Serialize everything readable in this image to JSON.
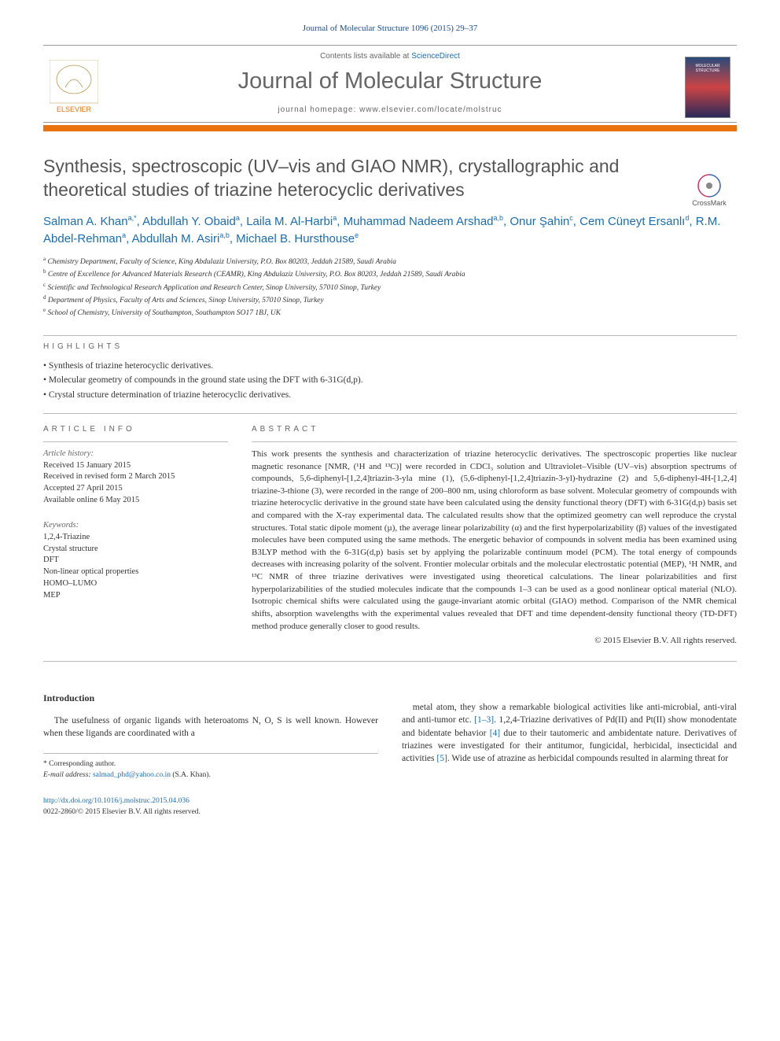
{
  "header": {
    "citation": "Journal of Molecular Structure 1096 (2015) 29–37",
    "contents_prefix": "Contents lists available at ",
    "contents_link": "ScienceDirect",
    "journal_title": "Journal of Molecular Structure",
    "homepage_prefix": "journal homepage: ",
    "homepage_url": "www.elsevier.com/locate/molstruc",
    "elsevier_label": "ELSEVIER",
    "cover_label": "MOLECULAR STRUCTURE"
  },
  "crossmark": {
    "label": "CrossMark"
  },
  "title": "Synthesis, spectroscopic (UV–vis and GIAO NMR), crystallographic and theoretical studies of triazine heterocyclic derivatives",
  "authors": [
    {
      "name": "Salman A. Khan",
      "aff": "a,*"
    },
    {
      "name": "Abdullah Y. Obaid",
      "aff": "a"
    },
    {
      "name": "Laila M. Al-Harbi",
      "aff": "a"
    },
    {
      "name": "Muhammad Nadeem Arshad",
      "aff": "a,b"
    },
    {
      "name": "Onur Şahin",
      "aff": "c"
    },
    {
      "name": "Cem Cüneyt Ersanlı",
      "aff": "d"
    },
    {
      "name": "R.M. Abdel-Rehman",
      "aff": "a"
    },
    {
      "name": "Abdullah M. Asiri",
      "aff": "a,b"
    },
    {
      "name": "Michael B. Hursthouse",
      "aff": "e"
    }
  ],
  "affiliations": [
    {
      "key": "a",
      "text": "Chemistry Department, Faculty of Science, King Abdulaziz University, P.O. Box 80203, Jeddah 21589, Saudi Arabia"
    },
    {
      "key": "b",
      "text": "Centre of Excellence for Advanced Materials Research (CEAMR), King Abdulaziz University, P.O. Box 80203, Jeddah 21589, Saudi Arabia"
    },
    {
      "key": "c",
      "text": "Scientific and Technological Research Application and Research Center, Sinop University, 57010 Sinop, Turkey"
    },
    {
      "key": "d",
      "text": "Department of Physics, Faculty of Arts and Sciences, Sinop University, 57010 Sinop, Turkey"
    },
    {
      "key": "e",
      "text": "School of Chemistry, University of Southampton, Southampton SO17 1BJ, UK"
    }
  ],
  "highlights": {
    "heading": "highlights",
    "items": [
      "Synthesis of triazine heterocyclic derivatives.",
      "Molecular geometry of compounds in the ground state using the DFT with 6-31G(d,p).",
      "Crystal structure determination of triazine heterocyclic derivatives."
    ]
  },
  "article_info": {
    "heading": "article info",
    "history_label": "Article history:",
    "history": [
      "Received 15 January 2015",
      "Received in revised form 2 March 2015",
      "Accepted 27 April 2015",
      "Available online 6 May 2015"
    ],
    "keywords_label": "Keywords:",
    "keywords": [
      "1,2,4-Triazine",
      "Crystal structure",
      "DFT",
      "Non-linear optical properties",
      "HOMO–LUMO",
      "MEP"
    ]
  },
  "abstract": {
    "heading": "abstract",
    "text": "This work presents the synthesis and characterization of triazine heterocyclic derivatives. The spectroscopic properties like nuclear magnetic resonance [NMR, (¹H and ¹³C)] were recorded in CDCl₃ solution and Ultraviolet–Visible (UV–vis) absorption spectrums of compounds, 5,6-diphenyl-[1,2,4]triazin-3-yla mine (1), (5,6-diphenyl-[1,2,4]triazin-3-yl)-hydrazine (2) and 5,6-diphenyl-4H-[1,2,4] triazine-3-thione (3), were recorded in the range of 200–800 nm, using chloroform as base solvent. Molecular geometry of compounds with triazine heterocyclic derivative in the ground state have been calculated using the density functional theory (DFT) with 6-31G(d,p) basis set and compared with the X-ray experimental data. The calculated results show that the optimized geometry can well reproduce the crystal structures. Total static dipole moment (µ), the average linear polarizability (α) and the first hyperpolarizability (β) values of the investigated molecules have been computed using the same methods. The energetic behavior of compounds in solvent media has been examined using B3LYP method with the 6-31G(d,p) basis set by applying the polarizable continuum model (PCM). The total energy of compounds decreases with increasing polarity of the solvent. Frontier molecular orbitals and the molecular electrostatic potential (MEP), ¹H NMR, and ¹³C NMR of three triazine derivatives were investigated using theoretical calculations. The linear polarizabilities and first hyperpolarizabilities of the studied molecules indicate that the compounds 1–3 can be used as a good nonlinear optical material (NLO). Isotropic chemical shifts were calculated using the gauge-invariant atomic orbital (GIAO) method. Comparison of the NMR chemical shifts, absorption wavelengths with the experimental values revealed that DFT and time dependent-density functional theory (TD-DFT) method produce generally closer to good results.",
    "copyright": "© 2015 Elsevier B.V. All rights reserved."
  },
  "intro": {
    "heading": "Introduction",
    "col1": "The usefulness of organic ligands with heteroatoms N, O, S is well known. However when these ligands are coordinated with a",
    "col2_part1": "metal atom, they show a remarkable biological activities like anti-microbial, anti-viral and anti-tumor etc. ",
    "col2_ref1": "[1–3]",
    "col2_part2": ". 1,2,4-Triazine derivatives of Pd(II) and Pt(II) show monodentate and bidentate behavior ",
    "col2_ref2": "[4]",
    "col2_part3": " due to their tautomeric and ambidentate nature. Derivatives of triazines were investigated for their antitumor, fungicidal, herbicidal, insecticidal and activities ",
    "col2_ref3": "[5]",
    "col2_part4": ". Wide use of atrazine as herbicidal compounds resulted in alarming threat for"
  },
  "corresponding": {
    "label": "* Corresponding author.",
    "email_label": "E-mail address: ",
    "email": "salmad_phd@yahoo.co.in",
    "email_suffix": " (S.A. Khan)."
  },
  "doi": {
    "url": "http://dx.doi.org/10.1016/j.molstruc.2015.04.036",
    "issn_line": "0022-2860/© 2015 Elsevier B.V. All rights reserved."
  },
  "colors": {
    "accent_orange": "#e8730f",
    "link_blue": "#1a6db5",
    "text_gray": "#555"
  }
}
